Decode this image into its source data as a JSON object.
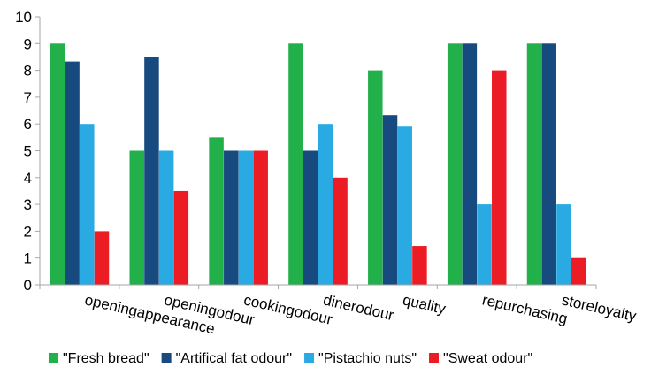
{
  "chart_data": {
    "type": "bar",
    "title": "",
    "xlabel": "",
    "ylabel": "",
    "ylim": [
      0,
      10
    ],
    "yticks": [
      0,
      1,
      2,
      3,
      4,
      5,
      6,
      7,
      8,
      9,
      10
    ],
    "grid": false,
    "legend_position": "bottom",
    "categories": [
      "openingappearance",
      "openingodour",
      "cookingodour",
      "dinerodour",
      "quality",
      "repurchasing",
      "storeloyalty"
    ],
    "series": [
      {
        "name": "\"Fresh bread\"",
        "color": "#22b04b",
        "values": [
          9,
          5,
          5.5,
          9,
          8,
          9,
          9
        ]
      },
      {
        "name": "\"Artifical fat odour\"",
        "color": "#174a7e",
        "values": [
          8.33,
          8.5,
          5,
          5,
          6.33,
          9,
          9
        ]
      },
      {
        "name": "\"Pistachio nuts\"",
        "color": "#2aaae2",
        "values": [
          6,
          5,
          5,
          6,
          5.9,
          3,
          3
        ]
      },
      {
        "name": "\"Sweat odour\"",
        "color": "#ec1c24",
        "values": [
          2,
          3.5,
          5,
          4,
          1.45,
          8,
          1
        ]
      }
    ]
  }
}
